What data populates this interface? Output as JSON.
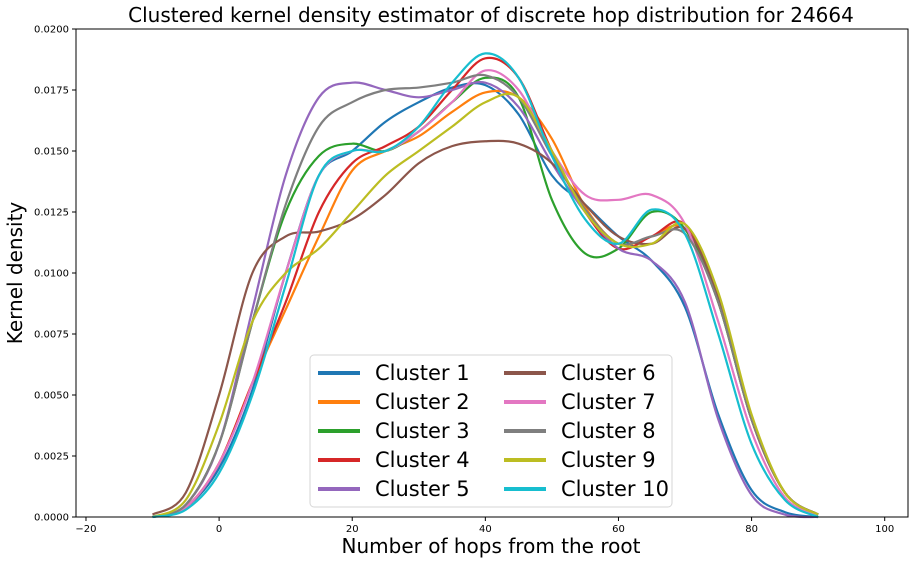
{
  "chart_data": {
    "type": "line",
    "title": "Clustered kernel density estimator of discrete hop distribution for 24664",
    "xlabel": "Number of hops from the root",
    "ylabel": "Kernel density",
    "xlim": [
      -21.5,
      103.5
    ],
    "ylim": [
      0,
      0.02
    ],
    "xticks": [
      -20,
      0,
      20,
      40,
      60,
      80,
      100
    ],
    "xtick_labels": [
      "−20",
      "0",
      "20",
      "40",
      "60",
      "80",
      "100"
    ],
    "yticks": [
      0,
      0.0025,
      0.005,
      0.0075,
      0.01,
      0.0125,
      0.015,
      0.0175,
      0.02
    ],
    "ytick_labels": [
      "0.0000",
      "0.0025",
      "0.0050",
      "0.0075",
      "0.0100",
      "0.0125",
      "0.0150",
      "0.0175",
      "0.0200"
    ],
    "grid": false,
    "legend": {
      "placement": "lower-center",
      "columns": 2
    },
    "series": [
      {
        "name": "Cluster 1",
        "color": "#1f77b4",
        "x": [
          -10,
          -5,
          0,
          5,
          10,
          15,
          20,
          25,
          30,
          35,
          40,
          45,
          50,
          55,
          60,
          65,
          70,
          75,
          80,
          85,
          90
        ],
        "y": [
          0.0,
          0.0004,
          0.002,
          0.0052,
          0.01,
          0.014,
          0.015,
          0.0162,
          0.017,
          0.0176,
          0.0177,
          0.0165,
          0.014,
          0.0128,
          0.0115,
          0.0105,
          0.0086,
          0.0042,
          0.0011,
          0.0002,
          0.0
        ]
      },
      {
        "name": "Cluster 2",
        "color": "#ff7f0e",
        "x": [
          -10,
          -5,
          0,
          5,
          10,
          15,
          20,
          25,
          30,
          35,
          40,
          45,
          50,
          55,
          60,
          65,
          70,
          75,
          80,
          85,
          90
        ],
        "y": [
          0.0,
          0.0004,
          0.0022,
          0.0055,
          0.0085,
          0.0115,
          0.0142,
          0.015,
          0.0156,
          0.0166,
          0.0174,
          0.0172,
          0.0155,
          0.0127,
          0.0112,
          0.0115,
          0.0118,
          0.0088,
          0.004,
          0.001,
          0.0001
        ]
      },
      {
        "name": "Cluster 3",
        "color": "#2ca02c",
        "x": [
          -10,
          -5,
          0,
          5,
          10,
          15,
          20,
          25,
          30,
          35,
          40,
          45,
          50,
          55,
          60,
          65,
          70,
          75,
          80,
          85,
          90
        ],
        "y": [
          0.0,
          0.0005,
          0.003,
          0.008,
          0.0125,
          0.0148,
          0.0153,
          0.015,
          0.0158,
          0.017,
          0.018,
          0.0172,
          0.013,
          0.0108,
          0.011,
          0.0125,
          0.0118,
          0.0088,
          0.004,
          0.001,
          0.0001
        ]
      },
      {
        "name": "Cluster 4",
        "color": "#d62728",
        "x": [
          -10,
          -5,
          0,
          5,
          10,
          15,
          20,
          25,
          30,
          35,
          40,
          45,
          50,
          55,
          60,
          65,
          70,
          75,
          80,
          85,
          90
        ],
        "y": [
          0.0,
          0.0004,
          0.0022,
          0.0055,
          0.0088,
          0.0125,
          0.0145,
          0.0152,
          0.016,
          0.0175,
          0.0188,
          0.018,
          0.015,
          0.0125,
          0.011,
          0.0115,
          0.012,
          0.009,
          0.004,
          0.001,
          0.0001
        ]
      },
      {
        "name": "Cluster 5",
        "color": "#9467bd",
        "x": [
          -10,
          -5,
          0,
          5,
          10,
          15,
          20,
          25,
          30,
          35,
          40,
          45,
          50,
          55,
          60,
          65,
          70,
          75,
          80,
          85,
          90
        ],
        "y": [
          0.0,
          0.0005,
          0.003,
          0.0085,
          0.014,
          0.0172,
          0.0178,
          0.0175,
          0.0172,
          0.0175,
          0.0178,
          0.0168,
          0.0145,
          0.0125,
          0.011,
          0.0105,
          0.0088,
          0.004,
          0.0009,
          0.0001,
          0.0
        ]
      },
      {
        "name": "Cluster 6",
        "color": "#8c564b",
        "x": [
          -10,
          -5,
          0,
          5,
          10,
          15,
          20,
          25,
          30,
          35,
          40,
          45,
          50,
          55,
          60,
          65,
          70,
          75,
          80,
          85,
          90
        ],
        "y": [
          0.0001,
          0.001,
          0.005,
          0.01,
          0.0115,
          0.0117,
          0.0122,
          0.0132,
          0.0145,
          0.0152,
          0.0154,
          0.0153,
          0.0145,
          0.0128,
          0.0115,
          0.0112,
          0.0118,
          0.009,
          0.004,
          0.001,
          0.0001
        ]
      },
      {
        "name": "Cluster 7",
        "color": "#e377c2",
        "x": [
          -10,
          -5,
          0,
          5,
          10,
          15,
          20,
          25,
          30,
          35,
          40,
          45,
          50,
          55,
          60,
          65,
          70,
          75,
          80,
          85,
          90
        ],
        "y": [
          0.0,
          0.0004,
          0.0022,
          0.0055,
          0.01,
          0.014,
          0.015,
          0.015,
          0.0158,
          0.017,
          0.0183,
          0.0175,
          0.015,
          0.0132,
          0.013,
          0.0132,
          0.012,
          0.008,
          0.0035,
          0.0008,
          0.0001
        ]
      },
      {
        "name": "Cluster 8",
        "color": "#7f7f7f",
        "x": [
          -10,
          -5,
          0,
          5,
          10,
          15,
          20,
          25,
          30,
          35,
          40,
          45,
          50,
          55,
          60,
          65,
          70,
          75,
          80,
          85,
          90
        ],
        "y": [
          0.0,
          0.0005,
          0.003,
          0.008,
          0.0128,
          0.016,
          0.017,
          0.0175,
          0.0176,
          0.0178,
          0.0181,
          0.0172,
          0.0148,
          0.0126,
          0.0112,
          0.0115,
          0.0116,
          0.0088,
          0.004,
          0.001,
          0.0001
        ]
      },
      {
        "name": "Cluster 9",
        "color": "#bcbd22",
        "x": [
          -10,
          -5,
          0,
          5,
          10,
          15,
          20,
          25,
          30,
          35,
          40,
          45,
          50,
          55,
          60,
          65,
          70,
          75,
          80,
          85,
          90
        ],
        "y": [
          0.0,
          0.0007,
          0.0038,
          0.008,
          0.01,
          0.011,
          0.0125,
          0.014,
          0.015,
          0.016,
          0.017,
          0.0172,
          0.015,
          0.0125,
          0.0112,
          0.0112,
          0.012,
          0.0092,
          0.0042,
          0.001,
          0.0001
        ]
      },
      {
        "name": "Cluster 10",
        "color": "#17becf",
        "x": [
          -10,
          -5,
          0,
          5,
          10,
          15,
          20,
          25,
          30,
          35,
          40,
          45,
          50,
          55,
          60,
          65,
          70,
          75,
          80,
          85,
          90
        ],
        "y": [
          0.0,
          0.0003,
          0.0018,
          0.005,
          0.0095,
          0.014,
          0.015,
          0.015,
          0.016,
          0.0178,
          0.019,
          0.018,
          0.0148,
          0.0122,
          0.0112,
          0.0126,
          0.0116,
          0.0075,
          0.003,
          0.0007,
          0.0
        ]
      }
    ]
  }
}
